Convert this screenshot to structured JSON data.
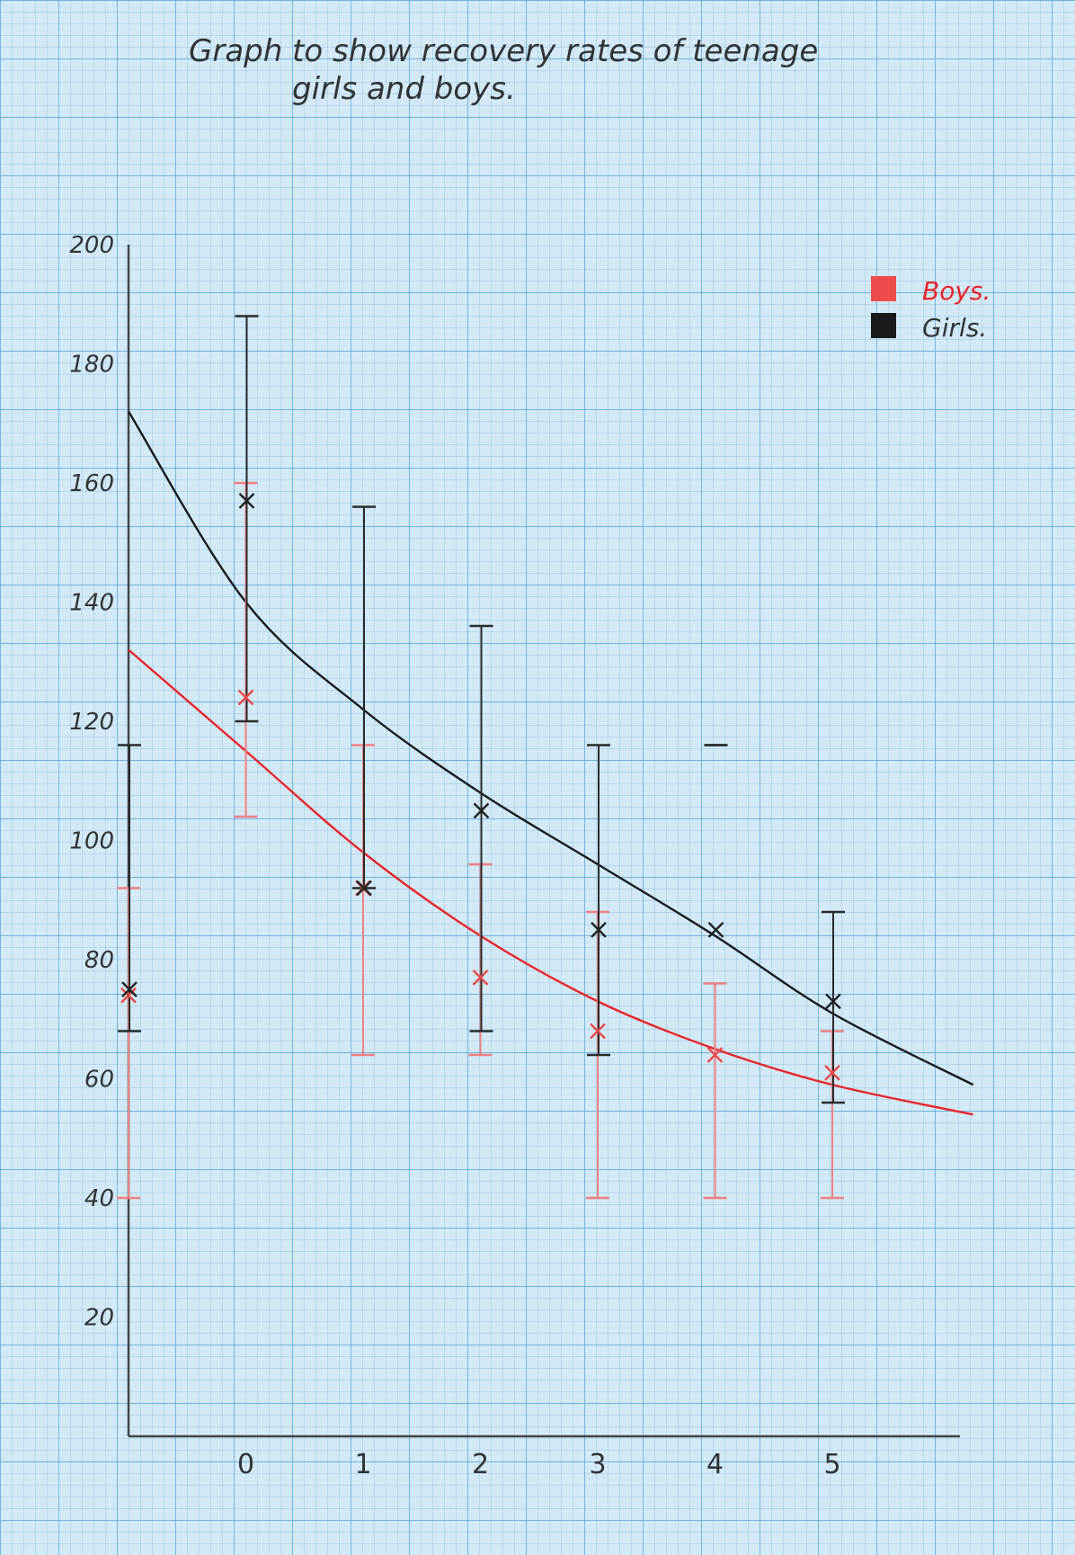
{
  "chart_data": {
    "type": "line",
    "title_line1": "Graph to show recovery rates of teenage",
    "title_line2": "girls and boys.",
    "xlabel": "",
    "ylabel": "",
    "x_tick_labels": [
      "0",
      "1",
      "2",
      "3",
      "4",
      "5"
    ],
    "y_tick_labels": [
      "20",
      "40",
      "60",
      "80",
      "100",
      "120",
      "140",
      "160",
      "180",
      "200"
    ],
    "ylim": [
      0,
      200
    ],
    "xlim": [
      -1,
      6
    ],
    "grid": true,
    "legend_placement": "top-right",
    "series": [
      {
        "name": "Boys.",
        "color": "#e8262a",
        "x": [
          -1,
          0,
          1,
          2,
          3,
          4,
          5
        ],
        "mean": [
          74,
          124,
          92,
          77,
          68,
          64,
          61
        ],
        "upper": [
          92,
          160,
          116,
          96,
          88,
          76,
          68
        ],
        "lower": [
          40,
          104,
          64,
          64,
          40,
          40,
          40
        ],
        "trend": [
          132,
          115,
          98,
          84,
          73,
          65,
          59,
          54
        ]
      },
      {
        "name": "Girls.",
        "color": "#1a1a1a",
        "x": [
          -1,
          0,
          1,
          2,
          3,
          4,
          5
        ],
        "mean": [
          75,
          157,
          92,
          105,
          85,
          85,
          73
        ],
        "upper": [
          116,
          188,
          156,
          136,
          116,
          116,
          88
        ],
        "lower": [
          68,
          120,
          92,
          68,
          64,
          116,
          56
        ],
        "trend": [
          172,
          140,
          122,
          108,
          96,
          84,
          71,
          59
        ]
      }
    ],
    "trend_x": [
      -1,
      0,
      1,
      2,
      3,
      4,
      5,
      6.2
    ]
  }
}
